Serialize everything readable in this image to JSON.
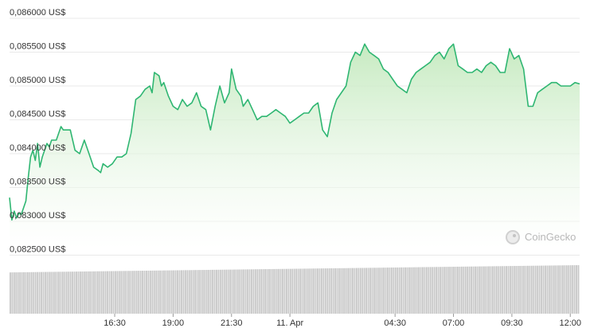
{
  "chart_data": {
    "type": "area",
    "title": "",
    "xlabel": "",
    "ylabel": "",
    "y_ticks": [
      "0,086000 US$",
      "0,085500 US$",
      "0,085000 US$",
      "0,084500 US$",
      "0,084000 US$",
      "0,083500 US$",
      "0,083000 US$",
      "0,082500 US$"
    ],
    "y_tick_values": [
      0.086,
      0.0855,
      0.085,
      0.0845,
      0.084,
      0.0835,
      0.083,
      0.0825
    ],
    "x_ticks": [
      "16:30",
      "19:00",
      "21:30",
      "11. Apr",
      "04:30",
      "07:00",
      "09:30",
      "12:00"
    ],
    "x_tick_hours": [
      16.5,
      19.0,
      21.5,
      24.0,
      28.5,
      31.0,
      33.5,
      36.0
    ],
    "x_range_hours": [
      12.0,
      36.4
    ],
    "ylim": [
      0.0824,
      0.08608
    ],
    "grid": "horizontal",
    "line_color": "#2fb672",
    "fill_color": "#c9ecc3",
    "volume_color": "#c8c8c8",
    "series": [
      {
        "x_hours": [
          12.0,
          12.1,
          12.2,
          12.3,
          12.4,
          12.5,
          12.7,
          12.8,
          12.9,
          13.0,
          13.1,
          13.2,
          13.3,
          13.4,
          13.5,
          13.6,
          13.7,
          13.8,
          14.0,
          14.2,
          14.3,
          14.4,
          14.6,
          14.8,
          15.0,
          15.2,
          15.4,
          15.6,
          15.8,
          15.9,
          16.0,
          16.2,
          16.4,
          16.6,
          16.8,
          17.0,
          17.2,
          17.4,
          17.6,
          17.8,
          18.0,
          18.1,
          18.2,
          18.4,
          18.5,
          18.6,
          18.8,
          19.0,
          19.2,
          19.4,
          19.6,
          19.8,
          20.0,
          20.2,
          20.4,
          20.6,
          20.8,
          21.0,
          21.2,
          21.4,
          21.5,
          21.7,
          21.9,
          22.0,
          22.2,
          22.4,
          22.6,
          22.8,
          23.0,
          23.2,
          23.4,
          23.6,
          23.8,
          24.0,
          24.2,
          24.4,
          24.6,
          24.8,
          25.0,
          25.2,
          25.4,
          25.6,
          25.8,
          26.0,
          26.2,
          26.4,
          26.6,
          26.8,
          27.0,
          27.2,
          27.4,
          27.6,
          27.8,
          28.0,
          28.2,
          28.4,
          28.6,
          28.8,
          29.0,
          29.2,
          29.4,
          29.6,
          29.8,
          30.0,
          30.2,
          30.4,
          30.6,
          30.8,
          31.0,
          31.2,
          31.4,
          31.6,
          31.8,
          32.0,
          32.2,
          32.4,
          32.6,
          32.8,
          33.0,
          33.2,
          33.4,
          33.6,
          33.8,
          34.0,
          34.2,
          34.4,
          34.6,
          34.8,
          35.0,
          35.2,
          35.4,
          35.6,
          35.8,
          36.0,
          36.2,
          36.4
        ],
        "values": [
          0.08335,
          0.08302,
          0.08315,
          0.08305,
          0.08312,
          0.0831,
          0.0833,
          0.08365,
          0.08395,
          0.08405,
          0.0839,
          0.08415,
          0.0838,
          0.08395,
          0.08405,
          0.08415,
          0.0841,
          0.0842,
          0.0842,
          0.0844,
          0.08435,
          0.08435,
          0.08435,
          0.08405,
          0.084,
          0.0842,
          0.084,
          0.0838,
          0.08375,
          0.08372,
          0.08385,
          0.0838,
          0.08385,
          0.08395,
          0.08395,
          0.084,
          0.0843,
          0.0848,
          0.08485,
          0.08495,
          0.085,
          0.0849,
          0.0852,
          0.08515,
          0.085,
          0.08505,
          0.08485,
          0.0847,
          0.08465,
          0.0848,
          0.0847,
          0.08475,
          0.0849,
          0.0847,
          0.08465,
          0.08435,
          0.0847,
          0.085,
          0.08475,
          0.0849,
          0.08525,
          0.08495,
          0.08485,
          0.0847,
          0.0848,
          0.08465,
          0.0845,
          0.08455,
          0.08455,
          0.0846,
          0.08465,
          0.0846,
          0.08455,
          0.08445,
          0.0845,
          0.08455,
          0.0846,
          0.0846,
          0.0847,
          0.08475,
          0.08435,
          0.08425,
          0.0846,
          0.0848,
          0.0849,
          0.085,
          0.08535,
          0.0855,
          0.08545,
          0.08562,
          0.0855,
          0.08545,
          0.0854,
          0.08525,
          0.0852,
          0.0851,
          0.085,
          0.08495,
          0.0849,
          0.0851,
          0.0852,
          0.08525,
          0.0853,
          0.08535,
          0.08545,
          0.0855,
          0.0854,
          0.08555,
          0.08562,
          0.0853,
          0.08525,
          0.0852,
          0.0852,
          0.08525,
          0.0852,
          0.0853,
          0.08535,
          0.0853,
          0.0852,
          0.0852,
          0.08555,
          0.0854,
          0.08545,
          0.08525,
          0.0847,
          0.0847,
          0.0849,
          0.08495,
          0.085,
          0.08505,
          0.08505,
          0.085,
          0.085,
          0.085,
          0.08505,
          0.08503
        ]
      }
    ],
    "volume": [
      3,
      3,
      3,
      3,
      3,
      3,
      3,
      3,
      3,
      3,
      3,
      3,
      3,
      3,
      3,
      3,
      3,
      3,
      3,
      3,
      3,
      3,
      3,
      3,
      3,
      3,
      3,
      3,
      3,
      3,
      3,
      3,
      3,
      3,
      3,
      3,
      3,
      3,
      3,
      3,
      3,
      3,
      3,
      3,
      3,
      3,
      3,
      3,
      3,
      3,
      3,
      3,
      3,
      3,
      3,
      3,
      3,
      3,
      3,
      3,
      3,
      3,
      3,
      3,
      3,
      3,
      3,
      3,
      3,
      3,
      3,
      3,
      3,
      3,
      3,
      3,
      3,
      3,
      3,
      3,
      3,
      3,
      3,
      3,
      3,
      3,
      3,
      3,
      3,
      3,
      3,
      3,
      3,
      3,
      3,
      3,
      3,
      3,
      3,
      3,
      3,
      3,
      3,
      3,
      3,
      3,
      3,
      3,
      3,
      3,
      3,
      3,
      3,
      3,
      3,
      3,
      3,
      3,
      3,
      3,
      3,
      3,
      3,
      3,
      3,
      3,
      3,
      3,
      3,
      3,
      3,
      3,
      3,
      3,
      3,
      3,
      3,
      3,
      3,
      3,
      3,
      3,
      3,
      3,
      3,
      3,
      3,
      3,
      3,
      3,
      3,
      3,
      3,
      3,
      3,
      3,
      3,
      3,
      3,
      3,
      3,
      3,
      3,
      3,
      3,
      3,
      3,
      3,
      3,
      3,
      3,
      3,
      3,
      3,
      3,
      3,
      3,
      3,
      3,
      3,
      3,
      3,
      3,
      3,
      3,
      3,
      3,
      3,
      3,
      3,
      3,
      3,
      3,
      3,
      3,
      3,
      3,
      3,
      3,
      3,
      3,
      3,
      3,
      3,
      3,
      3,
      3,
      3,
      3,
      3,
      3,
      3,
      3,
      3,
      3,
      3,
      3,
      3,
      3,
      3,
      3,
      3,
      3,
      3,
      3,
      3,
      3,
      3,
      3,
      3,
      3,
      3,
      3,
      3,
      3,
      3,
      3,
      3,
      3,
      3,
      3,
      3,
      3,
      3,
      3,
      3,
      3,
      3,
      3,
      3,
      3,
      3,
      3,
      3,
      3,
      3,
      3,
      3,
      3,
      3,
      3,
      3,
      3,
      3,
      3,
      3,
      3,
      3,
      3,
      3,
      3,
      3,
      3,
      3,
      3,
      3,
      3,
      3,
      3,
      3,
      3,
      3,
      3,
      3,
      3,
      3,
      3,
      3,
      3,
      3,
      3,
      3,
      3
    ]
  },
  "watermark": {
    "text": "CoinGecko",
    "icon": "gecko-logo-icon"
  }
}
